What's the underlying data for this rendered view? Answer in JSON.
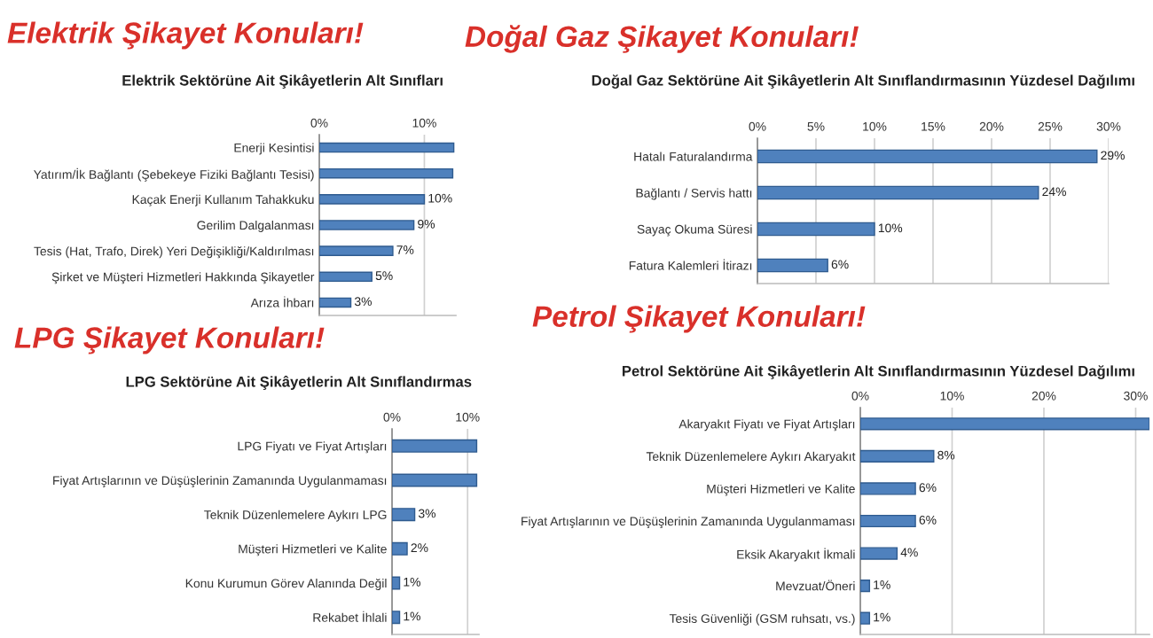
{
  "chart_data": [
    {
      "type": "bar",
      "orientation": "horizontal",
      "title": "Elektrik Şikayet Konuları!",
      "subtitle": "Elektrik Sektörüne Ait Şikâyetlerin Alt Sınıfları",
      "categories": [
        "Enerji Kesintisi",
        "Yatırım/İk Bağlantı (Şebekeye Fiziki Bağlantı Tesisi)",
        "Kaçak Enerji Kullanım Tahakkuku",
        "Gerilim Dalgalanması",
        "Tesis (Hat, Trafo, Direk) Yeri Değişikliği/Kaldırılması",
        "Şirket ve Müşteri Hizmetleri Hakkında Şikayetler",
        "Arıza İhbarı"
      ],
      "values": [
        12.8,
        12.7,
        10,
        9,
        7,
        5,
        3
      ],
      "value_labels": [
        null,
        null,
        "10%",
        "9%",
        "7%",
        "5%",
        "3%"
      ],
      "color": "#4f81bd",
      "xlim": [
        0,
        13
      ],
      "xticks": [
        {
          "value": 0,
          "label": "0%"
        },
        {
          "value": 10,
          "label": "10%"
        }
      ],
      "grid": "x"
    },
    {
      "type": "bar",
      "orientation": "horizontal",
      "title": "Doğal Gaz Şikayet Konuları!",
      "subtitle": "Doğal Gaz Sektörüne Ait Şikâyetlerin Alt Sınıflandırmasının Yüzdesel Dağılımı",
      "categories": [
        "Hatalı Faturalandırma",
        "Bağlantı / Servis hattı",
        "Sayaç Okuma Süresi",
        "Fatura Kalemleri İtirazı"
      ],
      "values": [
        29,
        24,
        10,
        6
      ],
      "value_labels": [
        "29%",
        "24%",
        "10%",
        "6%"
      ],
      "color": "#4f81bd",
      "xlim": [
        0,
        30
      ],
      "xticks": [
        {
          "value": 0,
          "label": "0%"
        },
        {
          "value": 5,
          "label": "5%"
        },
        {
          "value": 10,
          "label": "10%"
        },
        {
          "value": 15,
          "label": "15%"
        },
        {
          "value": 20,
          "label": "20%"
        },
        {
          "value": 25,
          "label": "25%"
        },
        {
          "value": 30,
          "label": "30%"
        }
      ],
      "grid": "x"
    },
    {
      "type": "bar",
      "orientation": "horizontal",
      "title": "LPG Şikayet Konuları!",
      "subtitle": "LPG Sektörüne Ait Şikâyetlerin Alt Sınıflandırmas",
      "categories": [
        "LPG Fiyatı ve Fiyat Artışları",
        "Fiyat Artışlarının ve Düşüşlerinin Zamanında Uygulanmaması",
        "Teknik Düzenlemelere Aykırı LPG",
        "Müşteri Hizmetleri ve Kalite",
        "Konu Kurumun Görev Alanında Değil",
        "Rekabet İhlali"
      ],
      "values": [
        11.2,
        11.2,
        3,
        2,
        1,
        1
      ],
      "value_labels": [
        null,
        null,
        "3%",
        "2%",
        "1%",
        "1%"
      ],
      "color": "#4f81bd",
      "xlim": [
        0,
        11.5
      ],
      "xticks": [
        {
          "value": 0,
          "label": "0%"
        },
        {
          "value": 10,
          "label": "10%"
        }
      ],
      "grid": "x"
    },
    {
      "type": "bar",
      "orientation": "horizontal",
      "title": "Petrol Şikayet Konuları!",
      "subtitle": "Petrol Sektörüne Ait Şikâyetlerin Alt Sınıflandırmasının Yüzdesel Dağılımı",
      "categories": [
        "Akaryakıt Fiyatı ve Fiyat Artışları",
        "Teknik Düzenlemelere Aykırı Akaryakıt",
        "Müşteri Hizmetleri ve Kalite",
        "Fiyat Artışlarının ve Düşüşlerinin Zamanında Uygulanmaması",
        "Eksik Akaryakıt İkmali",
        "Mevzuat/Öneri",
        "Tesis Güvenliği (GSM ruhsatı, vs.)"
      ],
      "values": [
        31.5,
        8,
        6,
        6,
        4,
        1,
        1
      ],
      "value_labels": [
        null,
        "8%",
        "6%",
        "6%",
        "4%",
        "1%",
        "1%"
      ],
      "color": "#4f81bd",
      "xlim": [
        0,
        31.5
      ],
      "xticks": [
        {
          "value": 0,
          "label": "0%"
        },
        {
          "value": 10,
          "label": "10%"
        },
        {
          "value": 20,
          "label": "20%"
        },
        {
          "value": 30,
          "label": "30%"
        }
      ],
      "grid": "x"
    }
  ]
}
